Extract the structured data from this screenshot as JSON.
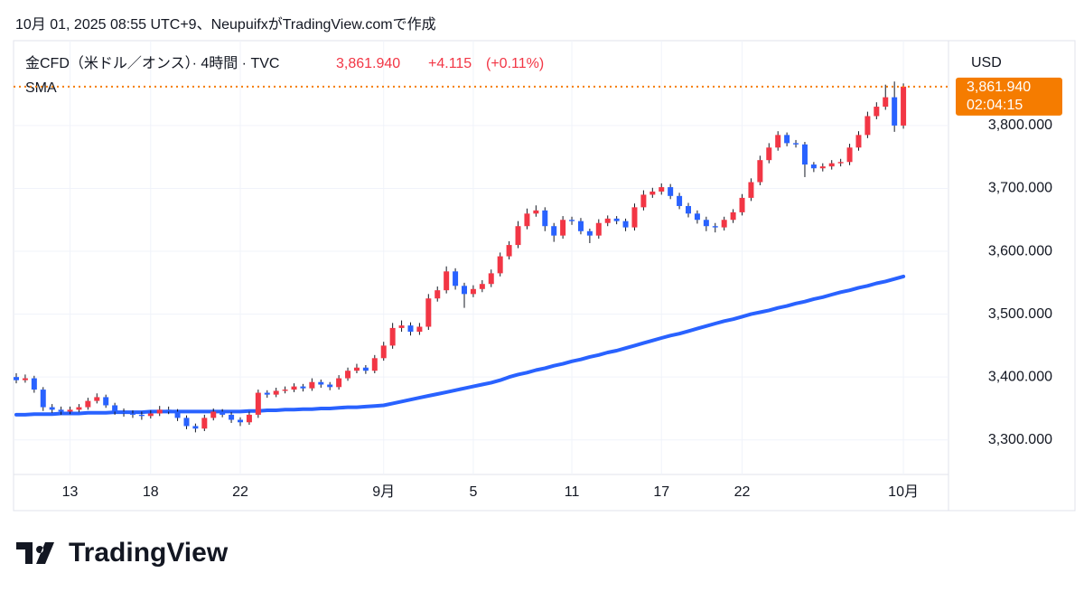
{
  "header": {
    "attribution": "10月 01, 2025 08:55 UTC+9、NeupuifxがTradingView.comで作成"
  },
  "chart_data": {
    "type": "candlestick",
    "symbol": "金CFD（米ドル／オンス）· 4時間 · TVC",
    "last_price": {
      "value": 3861.94,
      "label": "3,861.940"
    },
    "change": {
      "value": 4.115,
      "label": "+4.115"
    },
    "change_pct": {
      "value": 0.11,
      "label": "(+0.11%)"
    },
    "countdown": "02:04:15",
    "currency": "USD",
    "up_color": "#f23645",
    "down_color": "#2962ff",
    "last_price_color": "#f57c00",
    "grid": true,
    "ylim": [
      3245,
      3935
    ],
    "yticks": [
      {
        "value": 3300,
        "label": "3,300.000"
      },
      {
        "value": 3400,
        "label": "3,400.000"
      },
      {
        "value": 3500,
        "label": "3,500.000"
      },
      {
        "value": 3600,
        "label": "3,600.000"
      },
      {
        "value": 3700,
        "label": "3,700.000"
      },
      {
        "value": 3800,
        "label": "3,800.000"
      }
    ],
    "categories": [
      null,
      null,
      null,
      null,
      null,
      null,
      "13",
      null,
      null,
      null,
      null,
      null,
      null,
      null,
      null,
      "18",
      null,
      null,
      null,
      null,
      null,
      null,
      null,
      null,
      null,
      "22",
      null,
      null,
      null,
      null,
      null,
      null,
      null,
      null,
      null,
      null,
      null,
      null,
      null,
      null,
      null,
      "9月",
      null,
      null,
      null,
      null,
      null,
      null,
      null,
      null,
      null,
      "5",
      null,
      null,
      null,
      null,
      null,
      null,
      null,
      null,
      null,
      null,
      "11",
      null,
      null,
      null,
      null,
      null,
      null,
      null,
      null,
      null,
      "17",
      null,
      null,
      null,
      null,
      null,
      null,
      null,
      null,
      "22",
      null,
      null,
      null,
      null,
      null,
      null,
      null,
      null,
      null,
      null,
      null,
      null,
      null,
      null,
      null,
      null,
      null,
      "10月"
    ],
    "open": [
      3400,
      3395,
      3398,
      3380,
      3352,
      3348,
      3345,
      3348,
      3352,
      3362,
      3368,
      3355,
      3345,
      3342,
      3340,
      3338,
      3342,
      3348,
      3345,
      3335,
      3322,
      3318,
      3335,
      3345,
      3340,
      3332,
      3328,
      3340,
      3375,
      3372,
      3378,
      3380,
      3385,
      3382,
      3392,
      3388,
      3384,
      3398,
      3410,
      3415,
      3410,
      3430,
      3450,
      3478,
      3482,
      3472,
      3480,
      3525,
      3538,
      3568,
      3545,
      3532,
      3540,
      3548,
      3565,
      3592,
      3610,
      3640,
      3660,
      3665,
      3640,
      3625,
      3650,
      3648,
      3632,
      3625,
      3645,
      3652,
      3648,
      3638,
      3670,
      3690,
      3695,
      3702,
      3688,
      3672,
      3660,
      3650,
      3640,
      3638,
      3650,
      3662,
      3685,
      3710,
      3745,
      3765,
      3785,
      3772,
      3770,
      3738,
      3732,
      3735,
      3740,
      3742,
      3765,
      3785,
      3815,
      3830,
      3845,
      3800
    ],
    "high": [
      3406,
      3404,
      3402,
      3384,
      3357,
      3353,
      3353,
      3357,
      3367,
      3374,
      3372,
      3359,
      3350,
      3347,
      3345,
      3347,
      3354,
      3353,
      3349,
      3339,
      3326,
      3340,
      3350,
      3349,
      3344,
      3336,
      3345,
      3380,
      3379,
      3383,
      3385,
      3390,
      3389,
      3398,
      3396,
      3392,
      3403,
      3415,
      3421,
      3419,
      3435,
      3456,
      3486,
      3490,
      3487,
      3486,
      3532,
      3544,
      3576,
      3573,
      3550,
      3546,
      3554,
      3571,
      3598,
      3616,
      3648,
      3668,
      3673,
      3670,
      3645,
      3656,
      3655,
      3653,
      3636,
      3651,
      3657,
      3656,
      3652,
      3676,
      3697,
      3701,
      3708,
      3707,
      3693,
      3677,
      3665,
      3655,
      3645,
      3655,
      3667,
      3691,
      3716,
      3752,
      3772,
      3791,
      3789,
      3777,
      3774,
      3742,
      3740,
      3745,
      3747,
      3771,
      3791,
      3822,
      3837,
      3865,
      3870,
      3867
    ],
    "low": [
      3390,
      3391,
      3375,
      3346,
      3343,
      3340,
      3341,
      3344,
      3348,
      3358,
      3351,
      3340,
      3337,
      3335,
      3332,
      3334,
      3338,
      3341,
      3330,
      3317,
      3312,
      3314,
      3331,
      3336,
      3327,
      3322,
      3324,
      3335,
      3367,
      3368,
      3374,
      3376,
      3377,
      3378,
      3383,
      3379,
      3380,
      3394,
      3406,
      3405,
      3406,
      3426,
      3445,
      3472,
      3466,
      3467,
      3475,
      3520,
      3533,
      3539,
      3510,
      3527,
      3535,
      3543,
      3560,
      3587,
      3605,
      3635,
      3655,
      3632,
      3615,
      3620,
      3642,
      3627,
      3613,
      3620,
      3640,
      3643,
      3632,
      3633,
      3665,
      3685,
      3690,
      3683,
      3667,
      3654,
      3644,
      3632,
      3630,
      3633,
      3645,
      3657,
      3680,
      3705,
      3740,
      3760,
      3767,
      3765,
      3718,
      3726,
      3727,
      3730,
      3735,
      3737,
      3760,
      3780,
      3810,
      3825,
      3790,
      3795
    ],
    "close": [
      3395,
      3398,
      3380,
      3352,
      3348,
      3345,
      3348,
      3352,
      3362,
      3368,
      3355,
      3345,
      3342,
      3340,
      3338,
      3342,
      3348,
      3345,
      3335,
      3322,
      3318,
      3335,
      3345,
      3340,
      3332,
      3328,
      3340,
      3375,
      3372,
      3378,
      3380,
      3385,
      3382,
      3392,
      3388,
      3384,
      3398,
      3410,
      3415,
      3410,
      3430,
      3450,
      3478,
      3482,
      3472,
      3480,
      3525,
      3538,
      3568,
      3545,
      3532,
      3540,
      3548,
      3565,
      3592,
      3610,
      3640,
      3660,
      3665,
      3640,
      3625,
      3650,
      3648,
      3632,
      3625,
      3645,
      3652,
      3648,
      3638,
      3670,
      3690,
      3695,
      3702,
      3688,
      3672,
      3660,
      3650,
      3640,
      3638,
      3650,
      3662,
      3685,
      3710,
      3745,
      3765,
      3785,
      3772,
      3770,
      3738,
      3732,
      3735,
      3740,
      3742,
      3765,
      3785,
      3815,
      3830,
      3845,
      3800,
      3861.94
    ],
    "sma": {
      "name": "SMA",
      "color": "#2962ff",
      "values": [
        3340,
        3340,
        3341,
        3341,
        3341,
        3342,
        3342,
        3342,
        3343,
        3343,
        3343,
        3344,
        3344,
        3344,
        3344,
        3345,
        3345,
        3345,
        3345,
        3345,
        3345,
        3345,
        3345,
        3345,
        3345,
        3345,
        3346,
        3346,
        3347,
        3347,
        3348,
        3348,
        3349,
        3349,
        3350,
        3350,
        3351,
        3352,
        3352,
        3353,
        3354,
        3355,
        3358,
        3361,
        3364,
        3367,
        3370,
        3373,
        3376,
        3379,
        3382,
        3385,
        3388,
        3391,
        3395,
        3400,
        3404,
        3407,
        3411,
        3414,
        3418,
        3421,
        3425,
        3428,
        3432,
        3435,
        3439,
        3442,
        3446,
        3450,
        3454,
        3458,
        3462,
        3466,
        3469,
        3473,
        3477,
        3481,
        3485,
        3489,
        3492,
        3496,
        3500,
        3503,
        3506,
        3510,
        3513,
        3517,
        3520,
        3524,
        3527,
        3531,
        3535,
        3538,
        3542,
        3545,
        3549,
        3552,
        3556,
        3560
      ]
    }
  },
  "logo": "TradingView"
}
